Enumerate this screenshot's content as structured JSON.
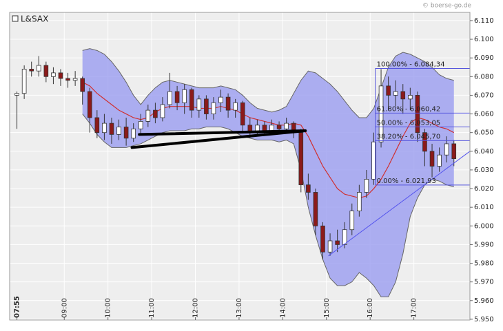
{
  "chart_data": {
    "type": "candlestick",
    "name": "L&SAX",
    "watermark": "© boerse-go.de",
    "xlim": [
      465,
      1097
    ],
    "ylim": [
      5.9496,
      6.1144
    ],
    "grid": true,
    "xticks": [
      {
        "value": 475,
        "label": "07:55"
      },
      {
        "value": 540,
        "label": "09:00"
      },
      {
        "value": 600,
        "label": "10:00"
      },
      {
        "value": 660,
        "label": "11:00"
      },
      {
        "value": 720,
        "label": "12:00"
      },
      {
        "value": 780,
        "label": "13:00"
      },
      {
        "value": 840,
        "label": "14:00"
      },
      {
        "value": 900,
        "label": "15:00"
      },
      {
        "value": 960,
        "label": "16:00"
      },
      {
        "value": 1020,
        "label": "17:00"
      }
    ],
    "yticks": [
      {
        "value": 5.95,
        "label": "5.950"
      },
      {
        "value": 5.96,
        "label": "5.960"
      },
      {
        "value": 5.97,
        "label": "5.970"
      },
      {
        "value": 5.98,
        "label": "5.980"
      },
      {
        "value": 5.99,
        "label": "5.990"
      },
      {
        "value": 6.0,
        "label": "6.000"
      },
      {
        "value": 6.01,
        "label": "6.010"
      },
      {
        "value": 6.02,
        "label": "6.020"
      },
      {
        "value": 6.03,
        "label": "6.030"
      },
      {
        "value": 6.04,
        "label": "6.040"
      },
      {
        "value": 6.05,
        "label": "6.050"
      },
      {
        "value": 6.06,
        "label": "6.060"
      },
      {
        "value": 6.07,
        "label": "6.070"
      },
      {
        "value": 6.08,
        "label": "6.080"
      },
      {
        "value": 6.09,
        "label": "6.090"
      },
      {
        "value": 6.1,
        "label": "6.100"
      },
      {
        "value": 6.11,
        "label": "6.110"
      }
    ],
    "up_color": "#ffffff",
    "down_color": "#8b1a1a",
    "x": [
      475,
      485,
      495,
      505,
      515,
      525,
      535,
      545,
      555,
      565,
      575,
      585,
      595,
      605,
      615,
      625,
      635,
      645,
      655,
      665,
      675,
      685,
      695,
      705,
      715,
      725,
      735,
      745,
      755,
      765,
      775,
      785,
      795,
      805,
      815,
      825,
      835,
      845,
      855,
      865,
      875,
      885,
      895,
      905,
      915,
      925,
      935,
      945,
      955,
      965,
      975,
      985,
      995,
      1005,
      1015,
      1025,
      1035,
      1045,
      1055,
      1065,
      1075
    ],
    "open": [
      6.07,
      6.071,
      6.084,
      6.083,
      6.086,
      6.08,
      6.082,
      6.079,
      6.078,
      6.079,
      6.072,
      6.058,
      6.05,
      6.055,
      6.049,
      6.053,
      6.047,
      6.052,
      6.056,
      6.062,
      6.058,
      6.065,
      6.072,
      6.066,
      6.073,
      6.062,
      6.068,
      6.06,
      6.066,
      6.069,
      6.062,
      6.066,
      6.054,
      6.05,
      6.054,
      6.051,
      6.054,
      6.052,
      6.055,
      6.05,
      6.022,
      6.018,
      6.0,
      5.986,
      5.992,
      5.99,
      5.998,
      6.008,
      6.018,
      6.025,
      6.045,
      6.075,
      6.07,
      6.072,
      6.068,
      6.07,
      6.05,
      6.04,
      6.032,
      6.038,
      6.044
    ],
    "high": [
      6.072,
      6.086,
      6.088,
      6.091,
      6.088,
      6.085,
      6.084,
      6.082,
      6.083,
      6.08,
      6.074,
      6.062,
      6.06,
      6.058,
      6.057,
      6.058,
      6.055,
      6.06,
      6.065,
      6.066,
      6.069,
      6.082,
      6.075,
      6.076,
      6.074,
      6.07,
      6.07,
      6.069,
      6.073,
      6.071,
      6.068,
      6.067,
      6.058,
      6.057,
      6.056,
      6.057,
      6.056,
      6.058,
      6.056,
      6.052,
      6.028,
      6.02,
      6.002,
      5.996,
      5.998,
      6.002,
      6.012,
      6.022,
      6.03,
      6.05,
      6.084,
      6.08,
      6.078,
      6.076,
      6.074,
      6.072,
      6.052,
      6.044,
      6.042,
      6.048,
      6.046
    ],
    "low": [
      6.052,
      6.068,
      6.08,
      6.08,
      6.077,
      6.076,
      6.075,
      6.074,
      6.075,
      6.065,
      6.05,
      6.047,
      6.046,
      6.044,
      6.046,
      6.043,
      6.045,
      6.049,
      6.053,
      6.055,
      6.056,
      6.063,
      6.062,
      6.06,
      6.058,
      6.058,
      6.057,
      6.057,
      6.061,
      6.058,
      6.058,
      6.05,
      6.047,
      6.048,
      6.049,
      6.05,
      6.05,
      6.051,
      6.047,
      6.018,
      6.014,
      5.995,
      5.982,
      5.984,
      5.986,
      5.988,
      5.995,
      6.005,
      6.015,
      6.022,
      6.042,
      6.062,
      6.064,
      6.06,
      6.062,
      6.045,
      6.032,
      6.026,
      6.029,
      6.034,
      6.032
    ],
    "close": [
      6.071,
      6.084,
      6.083,
      6.086,
      6.08,
      6.082,
      6.079,
      6.078,
      6.079,
      6.072,
      6.058,
      6.05,
      6.055,
      6.049,
      6.053,
      6.047,
      6.052,
      6.056,
      6.062,
      6.058,
      6.065,
      6.072,
      6.066,
      6.073,
      6.062,
      6.068,
      6.06,
      6.066,
      6.069,
      6.062,
      6.066,
      6.054,
      6.05,
      6.054,
      6.051,
      6.054,
      6.052,
      6.055,
      6.05,
      6.022,
      6.018,
      6.0,
      5.986,
      5.992,
      5.99,
      5.998,
      6.008,
      6.018,
      6.025,
      6.045,
      6.075,
      6.07,
      6.072,
      6.068,
      6.07,
      6.05,
      6.04,
      6.032,
      6.038,
      6.044,
      6.036
    ],
    "bands": {
      "fill": "#9a9cf0",
      "upper": [
        null,
        null,
        null,
        null,
        null,
        null,
        null,
        null,
        null,
        6.094,
        6.095,
        6.094,
        6.092,
        6.088,
        6.083,
        6.077,
        6.07,
        6.065,
        6.07,
        6.074,
        6.077,
        6.078,
        6.077,
        6.076,
        6.075,
        6.074,
        6.074,
        6.074,
        6.075,
        6.074,
        6.073,
        6.07,
        6.066,
        6.063,
        6.062,
        6.061,
        6.062,
        6.064,
        6.071,
        6.078,
        6.083,
        6.082,
        6.079,
        6.076,
        6.072,
        6.067,
        6.062,
        6.058,
        6.058,
        6.063,
        6.074,
        6.085,
        6.091,
        6.093,
        6.092,
        6.09,
        6.088,
        6.085,
        6.081,
        6.079,
        6.078
      ],
      "middle": [
        null,
        null,
        null,
        null,
        null,
        null,
        null,
        null,
        null,
        6.077,
        6.075,
        6.071,
        6.068,
        6.065,
        6.062,
        6.06,
        6.058,
        6.057,
        6.058,
        6.061,
        6.063,
        6.064,
        6.064,
        6.064,
        6.064,
        6.063,
        6.063,
        6.063,
        6.064,
        6.063,
        6.062,
        6.06,
        6.058,
        6.057,
        6.056,
        6.055,
        6.054,
        6.054,
        6.055,
        6.054,
        6.048,
        6.04,
        6.032,
        6.026,
        6.02,
        6.017,
        6.016,
        6.015,
        6.016,
        6.02,
        6.025,
        6.032,
        6.04,
        6.048,
        6.055,
        6.058,
        6.057,
        6.055,
        6.053,
        6.052,
        6.05
      ],
      "lower": [
        null,
        null,
        null,
        null,
        null,
        null,
        null,
        null,
        null,
        6.06,
        6.055,
        6.049,
        6.045,
        6.042,
        6.042,
        6.042,
        6.043,
        6.044,
        6.046,
        6.048,
        6.05,
        6.051,
        6.051,
        6.051,
        6.052,
        6.052,
        6.053,
        6.053,
        6.053,
        6.052,
        6.05,
        6.048,
        6.047,
        6.046,
        6.046,
        6.046,
        6.045,
        6.046,
        6.044,
        6.03,
        6.01,
        5.995,
        5.982,
        5.972,
        5.968,
        5.968,
        5.97,
        5.975,
        5.972,
        5.968,
        5.962,
        5.962,
        5.97,
        5.985,
        6.005,
        6.015,
        6.022,
        6.025,
        6.024,
        6.022,
        6.021
      ],
      "middle_color": "#d03030"
    },
    "fib": {
      "x_start": 967,
      "color": "#5555dd",
      "levels": [
        6.08434,
        6.06042,
        6.05305,
        6.0457,
        6.02193
      ],
      "value_labels": [
        "100.00% - 6.084,34",
        "61.80% - 6.060,42",
        "50.00% - 6.053,05",
        "38.20% - 6.045,70",
        "0.00% - 6.021,93"
      ]
    },
    "trendlines": [
      {
        "x": [
          643,
          871
        ],
        "values": [
          6.049,
          6.051
        ],
        "color": "#000000",
        "width": 4
      },
      {
        "x": [
          633,
          871
        ],
        "values": [
          6.042,
          6.051
        ],
        "color": "#000000",
        "width": 4
      },
      {
        "x": [
          903,
          1097
        ],
        "values": [
          5.984,
          6.04
        ],
        "color": "#5555ee",
        "width": 1
      }
    ]
  }
}
